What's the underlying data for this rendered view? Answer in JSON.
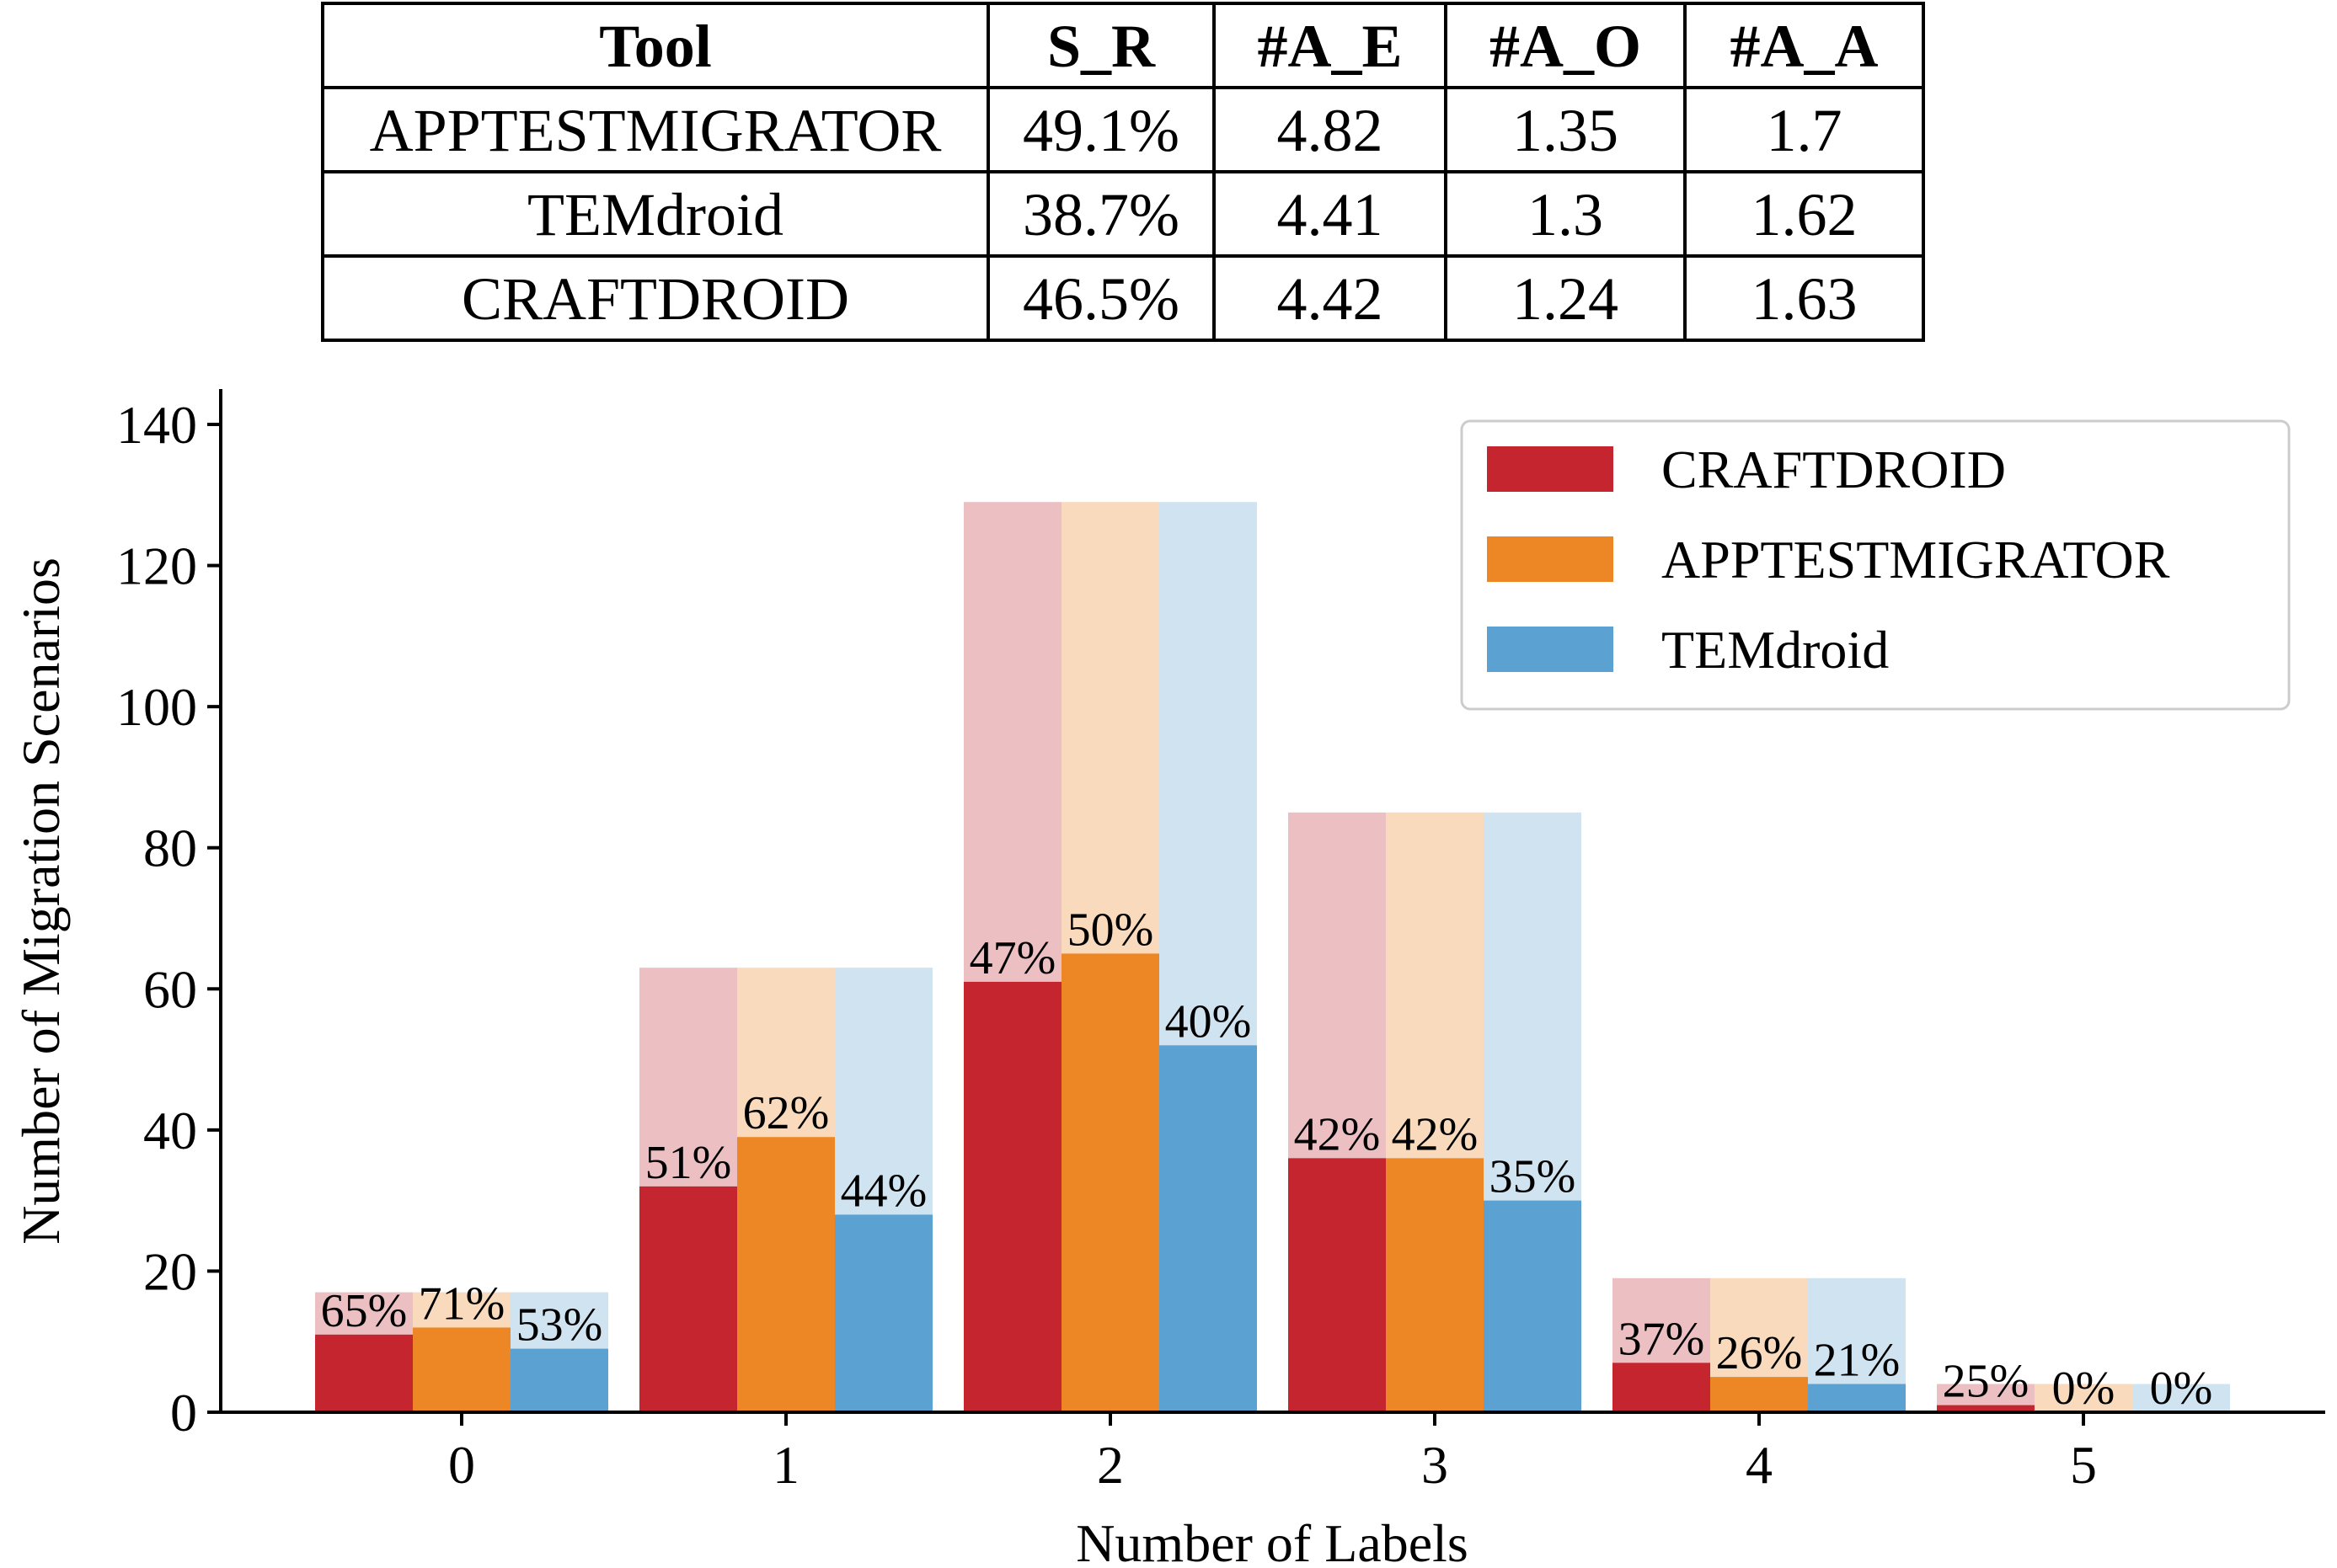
{
  "table": {
    "headers": [
      "Tool",
      "S_R",
      "#A_E",
      "#A_O",
      "#A_A"
    ],
    "rows": [
      [
        "APPTESTMIGRATOR",
        "49.1%",
        "4.82",
        "1.35",
        "1.7"
      ],
      [
        "TEMdroid",
        "38.7%",
        "4.41",
        "1.3",
        "1.62"
      ],
      [
        "CRAFTDROID",
        "46.5%",
        "4.42",
        "1.24",
        "1.63"
      ]
    ]
  },
  "chart_data": {
    "type": "bar",
    "title": "",
    "xlabel": "Number of Labels",
    "ylabel": "Number of Migration Scenarios",
    "categories": [
      "0",
      "1",
      "2",
      "3",
      "4",
      "5"
    ],
    "ylim": [
      0,
      145
    ],
    "yticks": [
      0,
      20,
      40,
      60,
      80,
      100,
      120,
      140
    ],
    "totals": [
      17,
      63,
      129,
      85,
      19,
      4
    ],
    "series": [
      {
        "name": "CRAFTDROID",
        "color": "#c4252f",
        "light_color": "#ecbfc3",
        "values": [
          11,
          32,
          61,
          36,
          7,
          1
        ],
        "labels": [
          "65%",
          "51%",
          "47%",
          "42%",
          "37%",
          "25%"
        ]
      },
      {
        "name": "APPTESTMIGRATOR",
        "color": "#ed8725",
        "light_color": "#f9dabd",
        "values": [
          12,
          39,
          65,
          36,
          5,
          0
        ],
        "labels": [
          "71%",
          "62%",
          "50%",
          "42%",
          "26%",
          "0%"
        ]
      },
      {
        "name": "TEMdroid",
        "color": "#5ba2d2",
        "light_color": "#cfe3f0",
        "values": [
          9,
          28,
          52,
          30,
          4,
          0
        ],
        "labels": [
          "53%",
          "44%",
          "40%",
          "35%",
          "21%",
          "0%"
        ]
      }
    ],
    "legend": {
      "position": "top-right"
    },
    "grid": false
  }
}
